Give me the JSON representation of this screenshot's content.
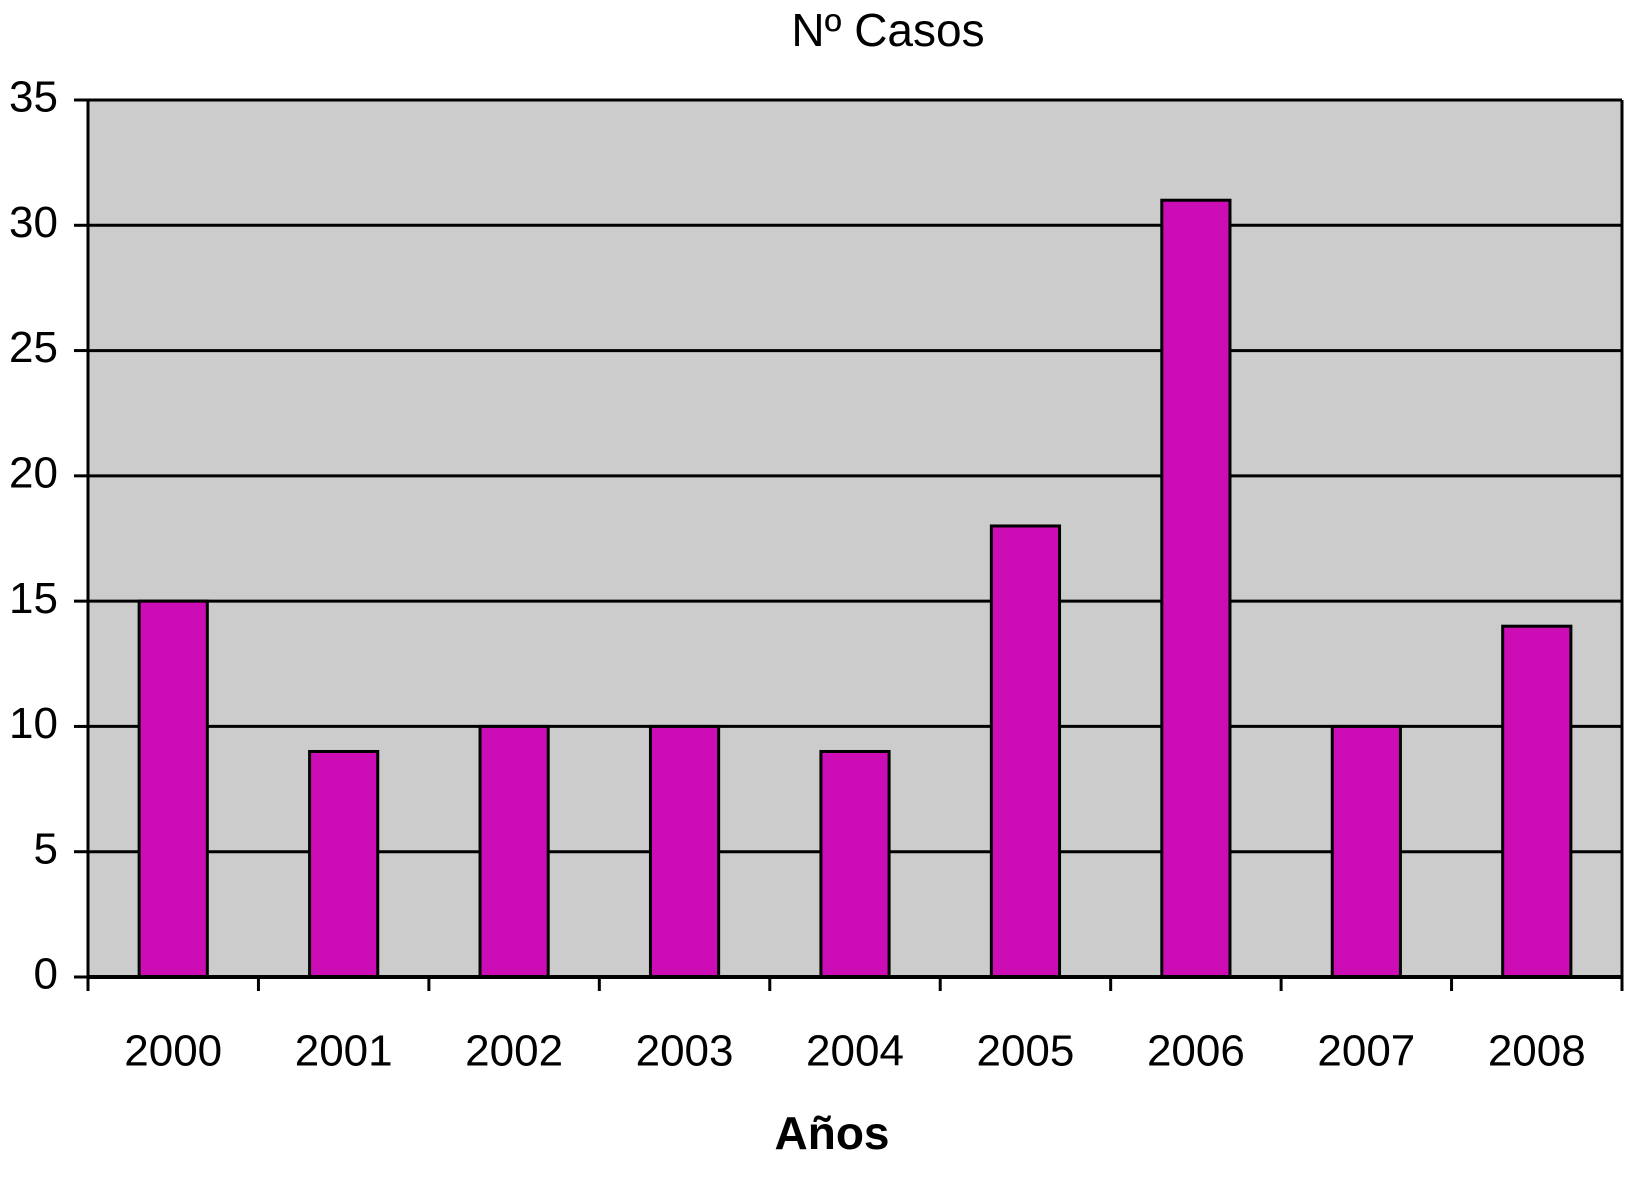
{
  "chart_data": {
    "type": "bar",
    "title": "Nº Casos",
    "x_label": "Años",
    "categories": [
      "2000",
      "2001",
      "2002",
      "2003",
      "2004",
      "2005",
      "2006",
      "2007",
      "2008"
    ],
    "values": [
      15,
      9,
      10,
      10,
      9,
      18,
      31,
      10,
      14
    ],
    "color": "#cc0cb4",
    "ylim": [
      0,
      35
    ],
    "yticks": [
      0,
      5,
      10,
      15,
      20,
      25,
      30,
      35
    ],
    "grid": true
  }
}
